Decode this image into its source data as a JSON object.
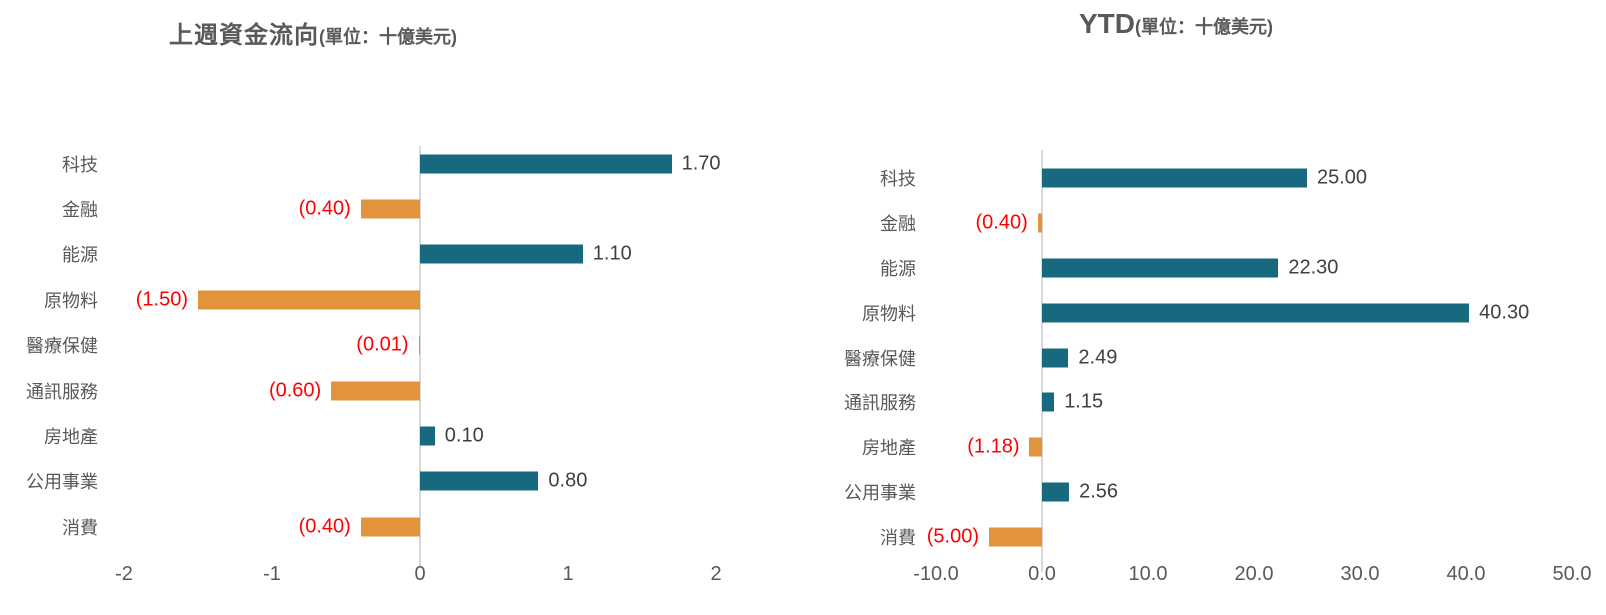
{
  "page": {
    "background_color": "#ffffff",
    "title_color": "#595959",
    "category_label_color": "#595959",
    "positive_value_color": "#404040",
    "negative_value_color": "#ff0000",
    "positive_bar_color": "#16697e",
    "negative_bar_color": "#e2943c",
    "axis_line_color": "#d9d9d9"
  },
  "chart_data": [
    {
      "type": "bar",
      "orientation": "horizontal",
      "title": "上週資金流向(單位：十億美元)",
      "title_main": "上週資金流向",
      "title_unit": "(單位：十億美元)",
      "categories": [
        "科技",
        "金融",
        "能源",
        "原物料",
        "醫療保健",
        "通訊服務",
        "房地產",
        "公用事業",
        "消費"
      ],
      "values": [
        1.7,
        -0.4,
        1.1,
        -1.5,
        -0.01,
        -0.6,
        0.1,
        0.8,
        -0.4
      ],
      "value_labels": [
        "1.70",
        "(0.40)",
        "1.10",
        "(1.50)",
        "(0.01)",
        "(0.60)",
        "0.10",
        "0.80",
        "(0.40)"
      ],
      "xlim": [
        -2,
        2
      ],
      "xticks": [
        "-2",
        "-1",
        "0",
        "1",
        "2"
      ],
      "grid": false,
      "legend": "none"
    },
    {
      "type": "bar",
      "orientation": "horizontal",
      "title": "YTD(單位：十億美元)",
      "title_main": "YTD",
      "title_unit": "(單位：十億美元)",
      "categories": [
        "科技",
        "金融",
        "能源",
        "原物料",
        "醫療保健",
        "通訊服務",
        "房地產",
        "公用事業",
        "消費"
      ],
      "values": [
        25.0,
        -0.4,
        22.3,
        40.3,
        2.49,
        1.15,
        -1.18,
        2.56,
        -5.0
      ],
      "value_labels": [
        "25.00",
        "(0.40)",
        "22.30",
        "40.30",
        "2.49",
        "1.15",
        "(1.18)",
        "2.56",
        "(5.00)"
      ],
      "xlim": [
        -10,
        50
      ],
      "xticks": [
        "-10.0",
        "0.0",
        "10.0",
        "20.0",
        "30.0",
        "40.0",
        "50.0"
      ],
      "grid": false,
      "legend": "none"
    }
  ]
}
